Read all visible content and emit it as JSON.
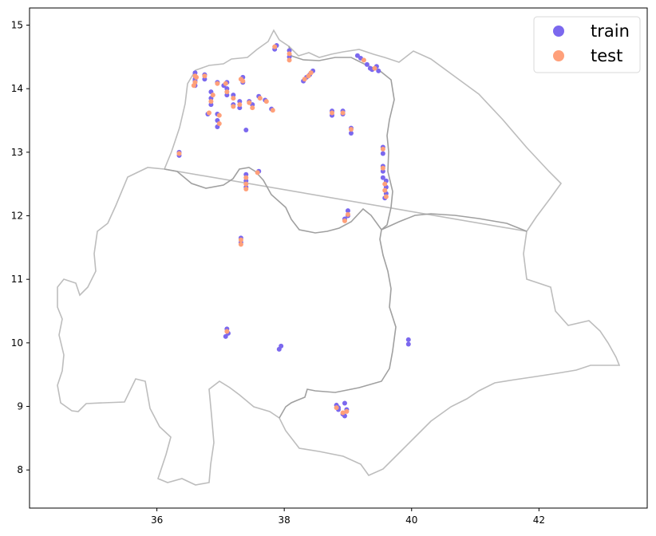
{
  "chart_data": {
    "type": "scatter",
    "title": "",
    "xlabel": "",
    "ylabel": "",
    "xlim": [
      34.0,
      43.7
    ],
    "ylim": [
      7.4,
      15.27
    ],
    "xticks": [
      36,
      38,
      40,
      42
    ],
    "yticks": [
      8,
      9,
      10,
      11,
      12,
      13,
      14,
      15
    ],
    "legend": {
      "placement": "top-right"
    },
    "grid": false,
    "colors": {
      "train": "#7b68ee",
      "test": "#ffa07a",
      "boundary": "#bdbdbd",
      "inner_boundary": "#a0a0a0"
    },
    "series": [
      {
        "name": "train",
        "color": "#7b68ee",
        "points": [
          [
            36.6,
            14.25
          ],
          [
            36.6,
            14.15
          ],
          [
            36.6,
            14.05
          ],
          [
            36.75,
            14.22
          ],
          [
            36.75,
            14.15
          ],
          [
            36.95,
            14.1
          ],
          [
            37.05,
            14.05
          ],
          [
            37.1,
            14.1
          ],
          [
            37.1,
            14.0
          ],
          [
            37.1,
            13.9
          ],
          [
            36.85,
            13.95
          ],
          [
            36.85,
            13.85
          ],
          [
            36.85,
            13.75
          ],
          [
            36.8,
            13.6
          ],
          [
            36.95,
            13.6
          ],
          [
            36.95,
            13.5
          ],
          [
            36.95,
            13.4
          ],
          [
            37.2,
            13.9
          ],
          [
            37.2,
            13.75
          ],
          [
            37.35,
            14.18
          ],
          [
            37.35,
            14.1
          ],
          [
            37.3,
            13.8
          ],
          [
            37.3,
            13.7
          ],
          [
            37.45,
            13.8
          ],
          [
            37.4,
            13.35
          ],
          [
            37.6,
            13.88
          ],
          [
            37.7,
            13.82
          ],
          [
            37.8,
            13.68
          ],
          [
            37.85,
            14.62
          ],
          [
            37.88,
            14.68
          ],
          [
            38.08,
            14.6
          ],
          [
            38.08,
            14.5
          ],
          [
            38.3,
            14.12
          ],
          [
            38.35,
            14.18
          ],
          [
            38.4,
            14.22
          ],
          [
            38.45,
            14.28
          ],
          [
            39.15,
            14.52
          ],
          [
            39.2,
            14.48
          ],
          [
            39.3,
            14.38
          ],
          [
            39.35,
            14.32
          ],
          [
            39.45,
            14.35
          ],
          [
            39.48,
            14.28
          ],
          [
            39.38,
            14.3
          ],
          [
            38.75,
            13.65
          ],
          [
            38.75,
            13.58
          ],
          [
            38.92,
            13.65
          ],
          [
            38.92,
            13.6
          ],
          [
            39.05,
            13.38
          ],
          [
            39.05,
            13.3
          ],
          [
            36.35,
            13.0
          ],
          [
            36.35,
            12.95
          ],
          [
            39.55,
            13.08
          ],
          [
            39.55,
            12.98
          ],
          [
            39.55,
            12.78
          ],
          [
            39.55,
            12.7
          ],
          [
            39.55,
            12.6
          ],
          [
            39.6,
            12.55
          ],
          [
            39.6,
            12.45
          ],
          [
            39.6,
            12.35
          ],
          [
            39.58,
            12.28
          ],
          [
            37.4,
            12.65
          ],
          [
            37.4,
            12.55
          ],
          [
            37.4,
            12.45
          ],
          [
            37.6,
            12.7
          ],
          [
            39.0,
            12.08
          ],
          [
            39.0,
            12.0
          ],
          [
            38.95,
            11.95
          ],
          [
            37.32,
            11.65
          ],
          [
            37.32,
            11.58
          ],
          [
            37.1,
            10.22
          ],
          [
            37.12,
            10.15
          ],
          [
            37.08,
            10.1
          ],
          [
            37.95,
            9.95
          ],
          [
            37.92,
            9.9
          ],
          [
            39.95,
            10.05
          ],
          [
            39.95,
            9.98
          ],
          [
            38.82,
            9.02
          ],
          [
            38.85,
            8.95
          ],
          [
            38.95,
            9.05
          ],
          [
            38.98,
            8.95
          ],
          [
            38.92,
            8.88
          ],
          [
            38.95,
            8.85
          ],
          [
            38.85,
            8.98
          ],
          [
            37.5,
            13.75
          ],
          [
            36.6,
            14.12
          ]
        ]
      },
      {
        "name": "test",
        "color": "#ffa07a",
        "points": [
          [
            36.6,
            14.2
          ],
          [
            36.6,
            14.1
          ],
          [
            36.58,
            14.05
          ],
          [
            36.75,
            14.2
          ],
          [
            36.95,
            14.08
          ],
          [
            37.08,
            14.08
          ],
          [
            37.1,
            13.95
          ],
          [
            36.88,
            13.9
          ],
          [
            36.85,
            13.8
          ],
          [
            36.82,
            13.62
          ],
          [
            36.98,
            13.58
          ],
          [
            36.98,
            13.45
          ],
          [
            37.2,
            13.85
          ],
          [
            37.2,
            13.72
          ],
          [
            37.32,
            14.15
          ],
          [
            37.35,
            14.12
          ],
          [
            37.3,
            13.75
          ],
          [
            37.45,
            13.78
          ],
          [
            37.62,
            13.85
          ],
          [
            37.72,
            13.8
          ],
          [
            37.82,
            13.66
          ],
          [
            37.85,
            14.66
          ],
          [
            38.08,
            14.55
          ],
          [
            38.08,
            14.45
          ],
          [
            38.32,
            14.15
          ],
          [
            38.38,
            14.2
          ],
          [
            38.42,
            14.25
          ],
          [
            39.25,
            14.45
          ],
          [
            39.42,
            14.32
          ],
          [
            38.75,
            13.62
          ],
          [
            38.92,
            13.62
          ],
          [
            39.05,
            13.36
          ],
          [
            36.35,
            12.98
          ],
          [
            39.55,
            13.05
          ],
          [
            39.55,
            12.75
          ],
          [
            39.58,
            12.5
          ],
          [
            39.58,
            12.4
          ],
          [
            39.6,
            12.3
          ],
          [
            37.4,
            12.6
          ],
          [
            37.4,
            12.5
          ],
          [
            37.4,
            12.42
          ],
          [
            37.58,
            12.68
          ],
          [
            39.0,
            12.02
          ],
          [
            38.95,
            11.92
          ],
          [
            37.32,
            11.62
          ],
          [
            37.32,
            11.55
          ],
          [
            37.1,
            10.18
          ],
          [
            38.82,
            8.98
          ],
          [
            38.98,
            8.92
          ],
          [
            38.92,
            8.9
          ],
          [
            36.62,
            14.18
          ],
          [
            37.5,
            13.7
          ]
        ]
      }
    ]
  }
}
